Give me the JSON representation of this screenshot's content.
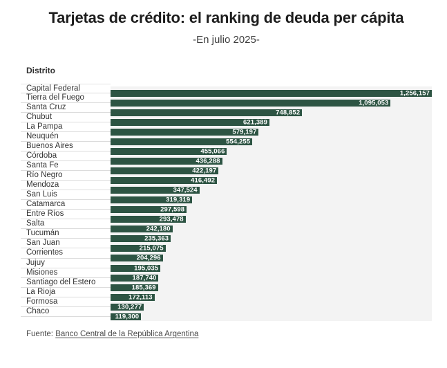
{
  "header": {
    "title": "Tarjetas de crédito: el ranking de deuda per cápita",
    "subtitle": "-En julio 2025-"
  },
  "chart_data": {
    "type": "bar",
    "orientation": "horizontal",
    "title": "Tarjetas de crédito: el ranking de deuda per cápita",
    "subtitle": "-En julio 2025-",
    "column_header": "Distrito",
    "categories": [
      "Capital Federal",
      "Tierra del Fuego",
      "Santa Cruz",
      "Chubut",
      "La Pampa",
      "Neuquén",
      "Buenos Aires",
      "Córdoba",
      "Santa Fe",
      "Río Negro",
      "Mendoza",
      "San Luis",
      "Catamarca",
      "Entre Ríos",
      "Salta",
      "Tucumán",
      "San Juan",
      "Corrientes",
      "Jujuy",
      "Misiones",
      "Santiago del Estero",
      "La Rioja",
      "Formosa",
      "Chaco"
    ],
    "values": [
      1256157,
      1095053,
      748852,
      621389,
      579197,
      554255,
      455066,
      436288,
      422197,
      416492,
      347524,
      319319,
      297598,
      293478,
      242180,
      235363,
      215075,
      204296,
      195035,
      187740,
      185369,
      172113,
      130277,
      119300
    ],
    "value_labels": [
      "1,256,157",
      "1,095,053",
      "748,852",
      "621,389",
      "579,197",
      "554,255",
      "455,066",
      "436,288",
      "422,197",
      "416,492",
      "347,524",
      "319,319",
      "297,598",
      "293,478",
      "242,180",
      "235,363",
      "215,075",
      "204,296",
      "195,035",
      "187,740",
      "185,369",
      "172,113",
      "130,277",
      "119,300"
    ],
    "xlim": [
      0,
      1256157
    ],
    "bar_color": "#2d5443",
    "plot_background": "#f3f3f3",
    "grid": "row-separators",
    "legend": "none",
    "value_label_position": "inside-end"
  },
  "footer": {
    "prefix": "Fuente: ",
    "source_link": "Banco Central de la República Argentina"
  }
}
